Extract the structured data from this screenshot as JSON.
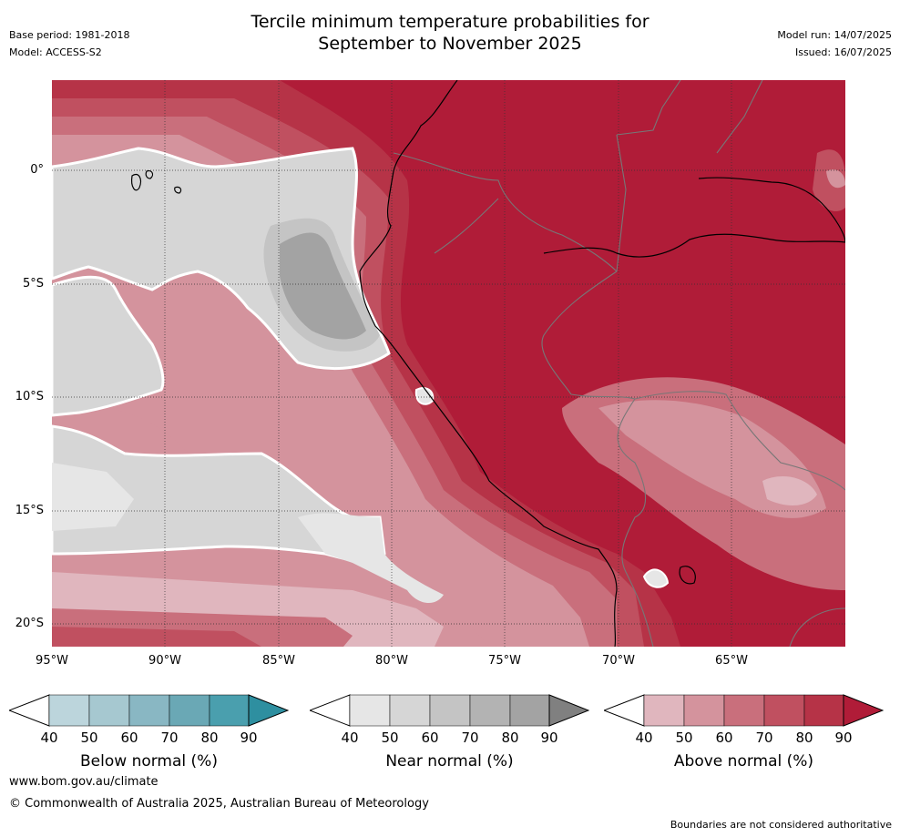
{
  "header": {
    "title_line1": "Tercile minimum temperature probabilities for",
    "title_line2": "September to November 2025",
    "base_period": "Base period: 1981-2018",
    "model": "Model: ACCESS-S2",
    "model_run": "Model run: 14/07/2025",
    "issued": "Issued: 16/07/2025"
  },
  "map": {
    "lat_labels": [
      "0°",
      "5°S",
      "10°S",
      "15°S",
      "20°S"
    ],
    "lon_labels": [
      "95°W",
      "90°W",
      "85°W",
      "80°W",
      "75°W",
      "70°W",
      "65°W"
    ],
    "colors": {
      "above": [
        "#e0b6be",
        "#d4939d",
        "#c96f7c",
        "#c05060",
        "#b63347",
        "#b01c38"
      ],
      "near": [
        "#e6e6e6",
        "#d6d6d6",
        "#c4c4c4",
        "#b3b3b3",
        "#a3a3a3",
        "#808080"
      ],
      "below": [
        "#bcd5dc",
        "#a6c8d0",
        "#89b7c3",
        "#6aa8b5",
        "#4a9fae",
        "#2e8fa0"
      ]
    }
  },
  "colorbars": [
    {
      "title": "Below normal (%)",
      "ticks": [
        "40",
        "50",
        "60",
        "70",
        "80",
        "90"
      ]
    },
    {
      "title": "Near normal (%)",
      "ticks": [
        "40",
        "50",
        "60",
        "70",
        "80",
        "90"
      ]
    },
    {
      "title": "Above normal (%)",
      "ticks": [
        "40",
        "50",
        "60",
        "70",
        "80",
        "90"
      ]
    }
  ],
  "footer": {
    "url": "www.bom.gov.au/climate",
    "copyright": "© Commonwealth of Australia 2025, Australian Bureau of Meteorology",
    "boundary_note": "Boundaries are not considered authoritative"
  }
}
